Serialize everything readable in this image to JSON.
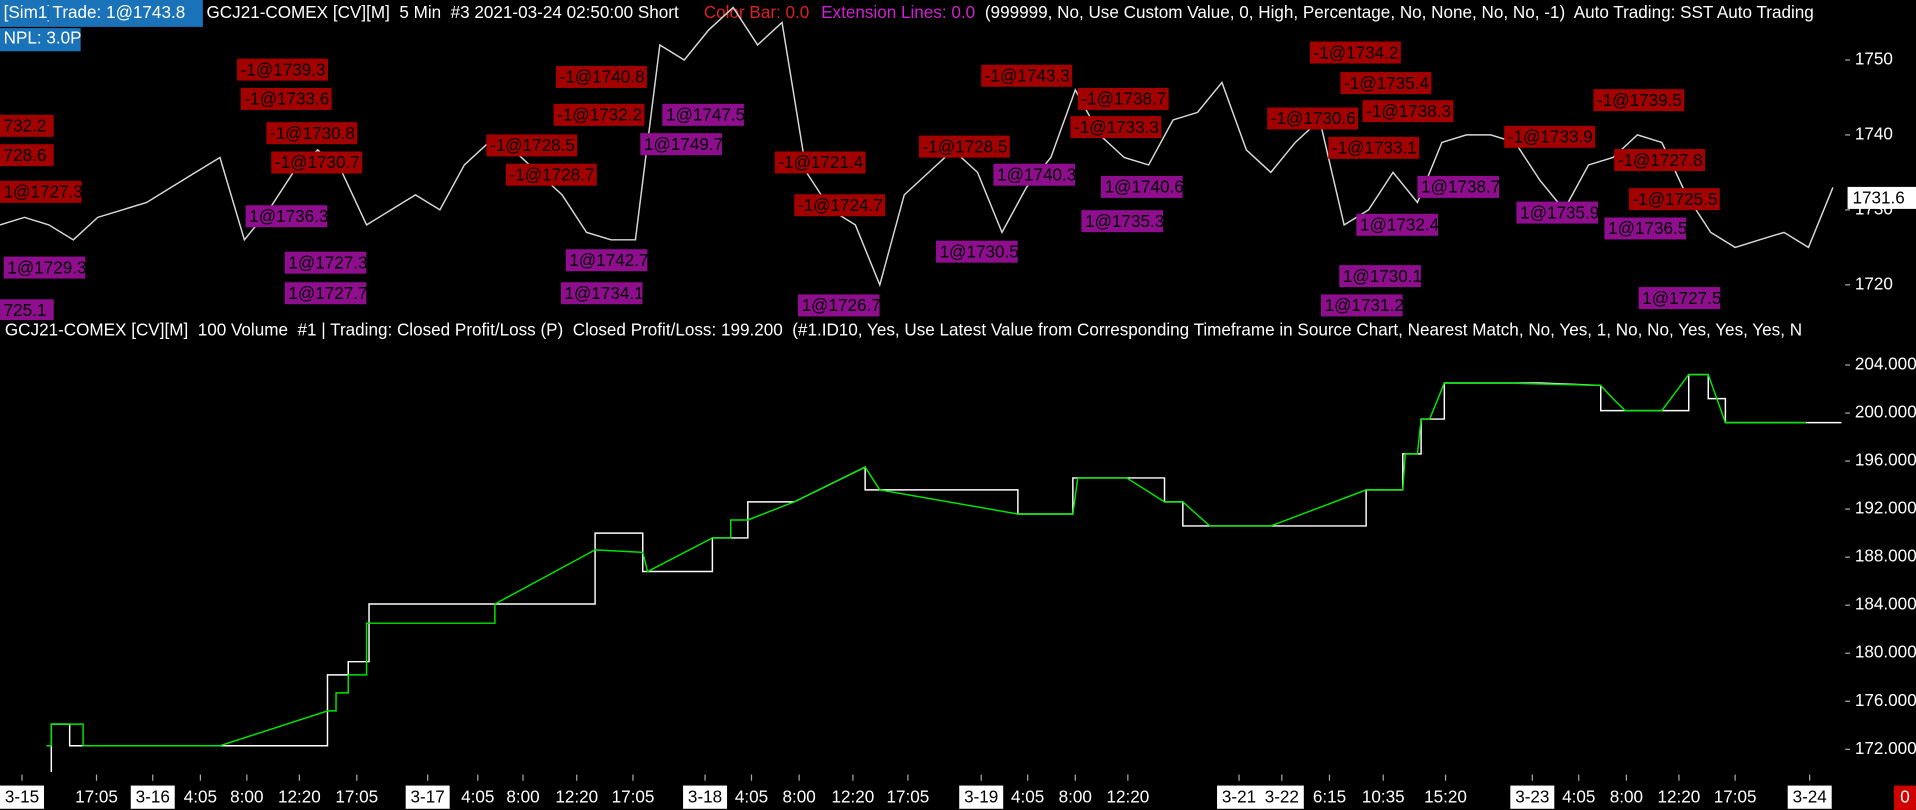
{
  "header": {
    "account": "[Sim1]",
    "trade": "Trade: 1@1743.8",
    "symbol": "GCJ21-COMEX [CV][M]  5 Min  #3 2021-03-24 02:50:00 Short",
    "color_bar": "Color Bar: 0.0",
    "extension_lines": "Extension Lines: 0.0",
    "params": "(999999, No, Use Custom Value, 0, High, Percentage, No, None, No, No, -1)  Auto Trading: SST Auto Trading",
    "npl": "NPL: 3.0P"
  },
  "lower_header": "GCJ21-COMEX [CV][M]  100 Volume  #1 | Trading: Closed Profit/Loss (P)  Closed Profit/Loss: 199.200  (#1.ID10, Yes, Use Latest Value from Corresponding Timeframe in Source Chart, Nearest Match, No, Yes, 1, No, No, Yes, Yes, Yes, N",
  "status_indicator": "0",
  "chart_data": [
    {
      "type": "line",
      "series": [
        {
          "color": "#d8d8d8",
          "values": [
            1728,
            1729,
            1728,
            1726,
            1729,
            1730,
            1731,
            1733,
            1735,
            1737,
            1726,
            1730,
            1735,
            1738,
            1735,
            1728,
            1730,
            1732,
            1730,
            1736,
            1739,
            1738,
            1735,
            1732,
            1727,
            1726,
            1726,
            1752,
            1750,
            1754,
            1757,
            1752,
            1755,
            1735,
            1730,
            1728,
            1720,
            1732,
            1735,
            1738,
            1735,
            1727,
            1733,
            1737,
            1746,
            1740,
            1737,
            1736,
            1742,
            1743,
            1747,
            1738,
            1735,
            1739,
            1742,
            1728,
            1730,
            1735,
            1731,
            1739,
            1740,
            1740,
            1739,
            1734,
            1730,
            1736,
            1737,
            1740,
            1739,
            1732,
            1727,
            1725,
            1726,
            1727,
            1725,
            1733
          ]
        }
      ],
      "xlim": [
        0,
        75.5
      ],
      "ylim": [
        1715.3,
        1758
      ],
      "yticks": [
        1720,
        1730,
        1740,
        1750
      ],
      "last_price": 1731.6,
      "annotations": [
        {
          "text": "732.2",
          "color": "#a30000"
        },
        {
          "text": "728.6",
          "color": "#a30000"
        },
        {
          "text": "1@1727.3",
          "color": "#a30000"
        },
        {
          "text": "1@1729.3",
          "color": "#8e0e8e"
        },
        {
          "text": "725.1",
          "color": "#8e0e8e"
        },
        {
          "text": "-1@1739.3",
          "color": "#a30000"
        },
        {
          "text": "-1@1733.6",
          "color": "#a30000"
        },
        {
          "text": "-1@1730.8",
          "color": "#a30000"
        },
        {
          "text": "-1@1730.7",
          "color": "#a30000"
        },
        {
          "text": "1@1736.3",
          "color": "#8e0e8e"
        },
        {
          "text": "1@1727.3",
          "color": "#8e0e8e"
        },
        {
          "text": "1@1727.7",
          "color": "#8e0e8e"
        },
        {
          "text": "-1@1728.5",
          "color": "#a30000"
        },
        {
          "text": "-1@1728.7",
          "color": "#a30000"
        },
        {
          "text": "-1@1740.8",
          "color": "#a30000"
        },
        {
          "text": "-1@1732.2",
          "color": "#a30000"
        },
        {
          "text": "1@1742.7",
          "color": "#8e0e8e"
        },
        {
          "text": "1@1734.1",
          "color": "#8e0e8e"
        },
        {
          "text": "1@1749.7",
          "color": "#8e0e8e"
        },
        {
          "text": "1@1747.5",
          "color": "#8e0e8e"
        },
        {
          "text": "-1@1721.4",
          "color": "#a30000"
        },
        {
          "text": "-1@1724.7",
          "color": "#a30000"
        },
        {
          "text": "1@1726.7",
          "color": "#8e0e8e"
        },
        {
          "text": "-1@1728.5",
          "color": "#a30000"
        },
        {
          "text": "-1@1743.3",
          "color": "#a30000"
        },
        {
          "text": "1@1740.3",
          "color": "#8e0e8e"
        },
        {
          "text": "1@1730.5",
          "color": "#8e0e8e"
        },
        {
          "text": "-1@1738.7",
          "color": "#a30000"
        },
        {
          "text": "-1@1733.3",
          "color": "#a30000"
        },
        {
          "text": "1@1740.6",
          "color": "#8e0e8e"
        },
        {
          "text": "1@1735.3",
          "color": "#8e0e8e"
        },
        {
          "text": "-1@1734.2",
          "color": "#a30000"
        },
        {
          "text": "-1@1735.4",
          "color": "#a30000"
        },
        {
          "text": "-1@1738.3",
          "color": "#a30000"
        },
        {
          "text": "-1@1730.6",
          "color": "#a30000"
        },
        {
          "text": "-1@1733.1",
          "color": "#a30000"
        },
        {
          "text": "1@1738.7",
          "color": "#8e0e8e"
        },
        {
          "text": "1@1732.4",
          "color": "#8e0e8e"
        },
        {
          "text": "1@1730.1",
          "color": "#8e0e8e"
        },
        {
          "text": "1@1731.2",
          "color": "#8e0e8e"
        },
        {
          "text": "-1@1733.9",
          "color": "#a30000"
        },
        {
          "text": "-1@1739.5",
          "color": "#a30000"
        },
        {
          "text": "-1@1727.8",
          "color": "#a30000"
        },
        {
          "text": "-1@1725.5",
          "color": "#a30000"
        },
        {
          "text": "1@1735.9",
          "color": "#8e0e8e"
        },
        {
          "text": "1@1736.5",
          "color": "#8e0e8e"
        },
        {
          "text": "1@1727.5",
          "color": "#8e0e8e"
        }
      ]
    },
    {
      "type": "line",
      "series": [
        {
          "color": "#ffffff",
          "x": [
            1.9,
            2.1,
            2.1,
            2.85,
            2.85,
            13.4,
            13.4,
            14.25,
            14.25,
            15.1,
            15.1,
            24.35,
            24.35,
            26.3,
            26.3,
            29.15,
            29.15,
            30.6,
            30.6,
            32.5,
            35.4,
            35.4,
            41.65,
            41.65,
            43.9,
            43.9,
            47.65,
            47.65,
            48.4,
            48.4,
            55.9,
            55.9,
            57.4,
            57.4,
            58.15,
            58.15,
            59.1,
            59.1,
            63,
            65.5,
            65.5,
            69.1,
            69.1,
            69.9,
            69.9,
            70.6,
            70.6,
            75.35
          ],
          "values": [
            169.5,
            169.5,
            174.1,
            174.1,
            172.3,
            172.3,
            178.2,
            178.2,
            179.3,
            179.3,
            184.1,
            184.1,
            190.0,
            190.0,
            186.8,
            186.8,
            189.6,
            189.6,
            192.6,
            192.6,
            195.5,
            193.6,
            193.6,
            191.6,
            191.6,
            194.6,
            194.6,
            192.6,
            192.6,
            190.6,
            190.6,
            193.6,
            193.6,
            196.6,
            196.6,
            199.5,
            199.5,
            202.5,
            202.5,
            202.3,
            200.2,
            200.2,
            203.2,
            203.2,
            201.2,
            201.2,
            199.2,
            199.2
          ]
        },
        {
          "color": "#00e600",
          "x": [
            1.9,
            2.1,
            2.1,
            3.4,
            3.4,
            9,
            13.4,
            13.75,
            13.75,
            14.25,
            14.25,
            15,
            15,
            20.25,
            20.25,
            24.35,
            26.3,
            26.5,
            29.15,
            29.9,
            29.9,
            30.6,
            32.5,
            35.4,
            36,
            41.65,
            43.9,
            44.1,
            46.1,
            47.65,
            48.4,
            49.5,
            52,
            55.9,
            57.4,
            57.5,
            58,
            58.15,
            58.5,
            59.1,
            61.6,
            65.5,
            66,
            66.5,
            68,
            69.1,
            69.9,
            70.6,
            73.9
          ],
          "values": [
            172.3,
            172.3,
            174.1,
            174.1,
            172.3,
            172.3,
            175.2,
            175.2,
            176.7,
            176.7,
            178.2,
            178.2,
            182.5,
            182.5,
            184.1,
            188.6,
            188.4,
            186.8,
            189.6,
            189.6,
            191.1,
            191.1,
            192.6,
            195.5,
            193.6,
            191.6,
            191.6,
            194.6,
            194.6,
            192.6,
            192.6,
            190.6,
            190.6,
            193.6,
            193.6,
            196.6,
            196.6,
            199.5,
            199.5,
            202.5,
            202.5,
            202.3,
            201.2,
            200.2,
            200.2,
            203.2,
            203.2,
            199.2,
            199.2
          ]
        }
      ],
      "xlim": [
        0,
        75.5
      ],
      "ylim": [
        170.1,
        205.4
      ],
      "yticks": [
        {
          "value": 172,
          "label": "172.000"
        },
        {
          "value": 176,
          "label": "176.000"
        },
        {
          "value": 180,
          "label": "180.000"
        },
        {
          "value": 184,
          "label": "184.000"
        },
        {
          "value": 188,
          "label": "188.000"
        },
        {
          "value": 192,
          "label": "192.000"
        },
        {
          "value": 196,
          "label": "196.000"
        },
        {
          "value": 200,
          "label": "200.000"
        },
        {
          "value": 204,
          "label": "204.000"
        }
      ],
      "xticks": [
        {
          "value": 0.9,
          "label": "3-15"
        },
        {
          "value": 3.95,
          "label": "17:05"
        },
        {
          "value": 6.25,
          "label": "3-16"
        },
        {
          "value": 8.2,
          "label": "4:05"
        },
        {
          "value": 10.1,
          "label": "8:00"
        },
        {
          "value": 12.25,
          "label": "12:20"
        },
        {
          "value": 14.6,
          "label": "17:05"
        },
        {
          "value": 17.5,
          "label": "3-17"
        },
        {
          "value": 19.55,
          "label": "4:05"
        },
        {
          "value": 21.4,
          "label": "8:00"
        },
        {
          "value": 23.6,
          "label": "12:20"
        },
        {
          "value": 25.9,
          "label": "17:05"
        },
        {
          "value": 28.85,
          "label": "3-18"
        },
        {
          "value": 30.75,
          "label": "4:05"
        },
        {
          "value": 32.7,
          "label": "8:00"
        },
        {
          "value": 34.9,
          "label": "12:20"
        },
        {
          "value": 37.15,
          "label": "17:05"
        },
        {
          "value": 40.15,
          "label": "3-19"
        },
        {
          "value": 42.05,
          "label": "4:05"
        },
        {
          "value": 44,
          "label": "8:00"
        },
        {
          "value": 46.15,
          "label": "12:20"
        },
        {
          "value": 50.7,
          "label": "3-21"
        },
        {
          "value": 52.45,
          "label": "3-22"
        },
        {
          "value": 54.4,
          "label": "6:15"
        },
        {
          "value": 56.6,
          "label": "10:35"
        },
        {
          "value": 59.15,
          "label": "15:20"
        },
        {
          "value": 62.7,
          "label": "3-23"
        },
        {
          "value": 64.6,
          "label": "4:05"
        },
        {
          "value": 66.55,
          "label": "8:00"
        },
        {
          "value": 68.7,
          "label": "12:20"
        },
        {
          "value": 71,
          "label": "17:05"
        },
        {
          "value": 74.05,
          "label": "3-24"
        }
      ]
    }
  ]
}
